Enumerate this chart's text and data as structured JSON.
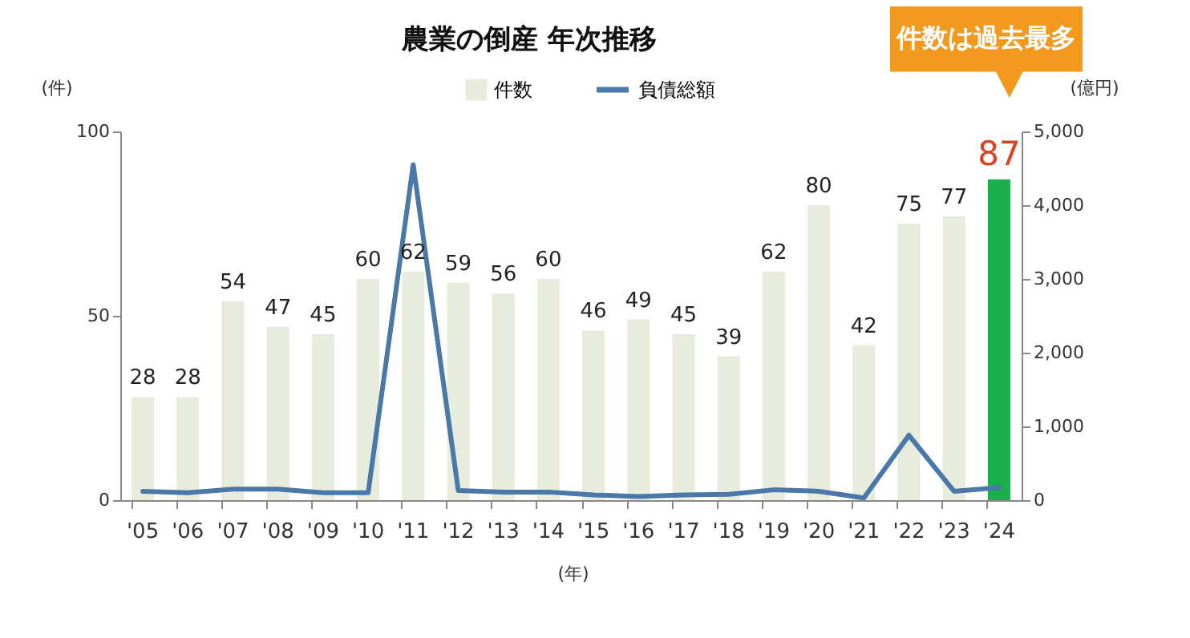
{
  "chart_data": {
    "type": "bar",
    "title": "農業の倒産  年次推移",
    "xlabel": "(年)",
    "ylabel": "(件)",
    "y2label": "(億円)",
    "categories": [
      "'05",
      "'06",
      "'07",
      "'08",
      "'09",
      "'10",
      "'11",
      "'12",
      "'13",
      "'14",
      "'15",
      "'16",
      "'17",
      "'18",
      "'19",
      "'20",
      "'21",
      "'22",
      "'23",
      "'24"
    ],
    "series": [
      {
        "name": "件数",
        "color": "#e8ecdc",
        "colors": [
          "#e8ecdc",
          "#e8ecdc",
          "#e8ecdc",
          "#e8ecdc",
          "#e8ecdc",
          "#e8ecdc",
          "#e8ecdc",
          "#e8ecdc",
          "#e8ecdc",
          "#e8ecdc",
          "#e8ecdc",
          "#e8ecdc",
          "#e8ecdc",
          "#e8ecdc",
          "#e8ecdc",
          "#e8ecdc",
          "#e8ecdc",
          "#e8ecdc",
          "#e8ecdc",
          "#1aaf4b"
        ],
        "values": [
          28,
          28,
          54,
          47,
          45,
          60,
          62,
          59,
          56,
          60,
          46,
          49,
          45,
          39,
          62,
          80,
          42,
          75,
          77,
          87
        ],
        "value_labels": [
          "28",
          "28",
          "54",
          "47",
          "45",
          "60",
          "62",
          "59",
          "56",
          "60",
          "46",
          "49",
          "45",
          "39",
          "62",
          "80",
          "42",
          "75",
          "77",
          "87"
        ]
      },
      {
        "name": "負債総額",
        "type": "line",
        "axis": "y2",
        "color": "#4a78a8",
        "values": [
          120,
          100,
          150,
          150,
          100,
          100,
          4550,
          130,
          110,
          110,
          70,
          50,
          70,
          80,
          140,
          120,
          30,
          880,
          120,
          170
        ]
      }
    ],
    "ylim": [
      0,
      100
    ],
    "yticks": [
      0,
      50,
      100
    ],
    "y2lim": [
      0,
      5000
    ],
    "y2ticks": [
      0,
      {
        "value": 1000,
        "label": "1,000"
      },
      {
        "value": 2000,
        "label": "2,000"
      },
      {
        "value": 3000,
        "label": "3,000"
      },
      {
        "value": 4000,
        "label": "4,000"
      },
      {
        "value": 5000,
        "label": "5,000"
      }
    ],
    "legend": "top",
    "grid": false,
    "annotations": [
      "件数は過去最多"
    ]
  }
}
